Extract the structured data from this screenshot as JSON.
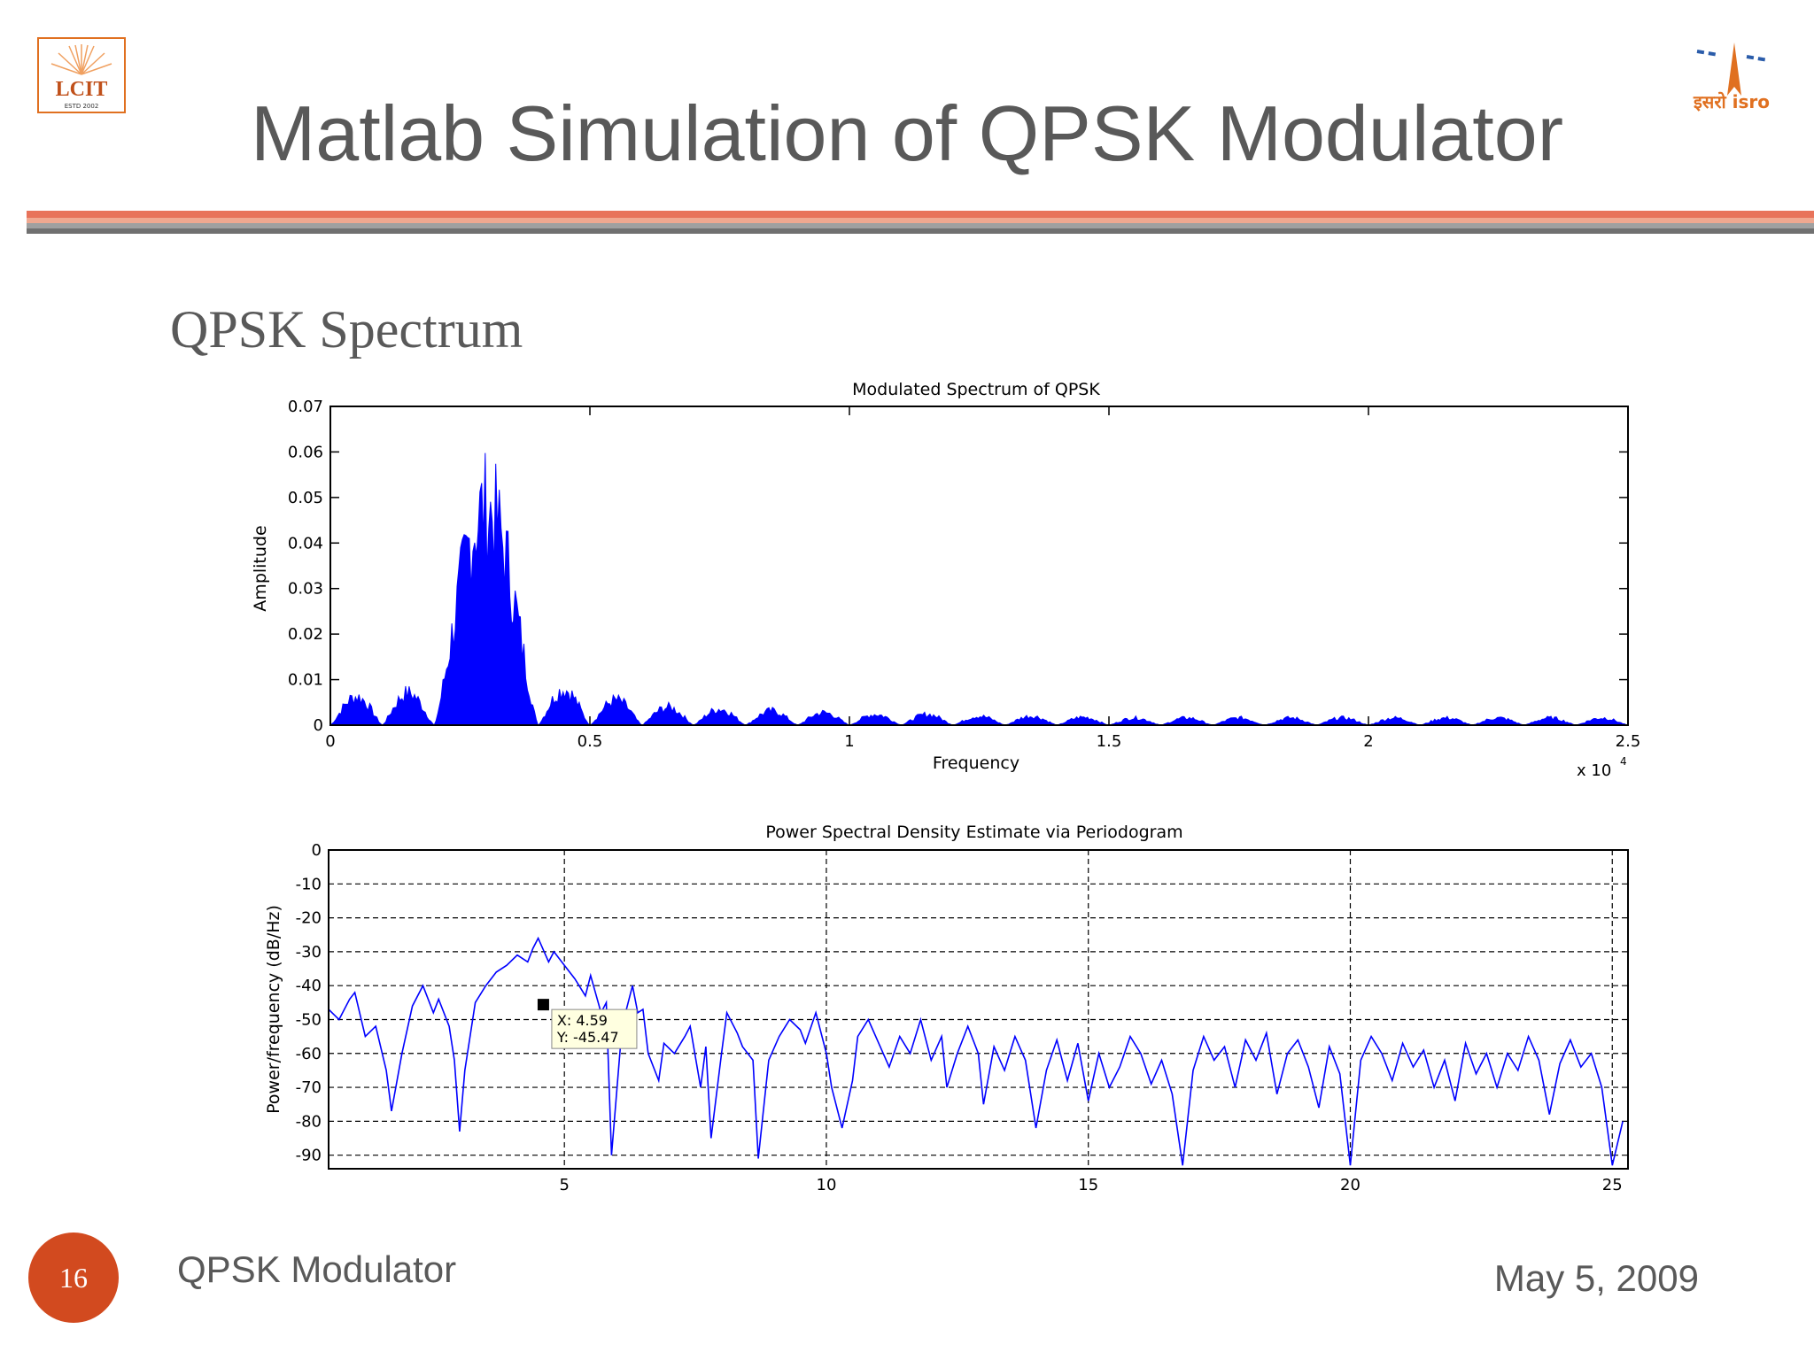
{
  "slide": {
    "title": "Matlab Simulation of QPSK Modulator",
    "section_heading": "QPSK Spectrum",
    "footer_title": "QPSK Modulator",
    "footer_date": "May 5, 2009",
    "slide_number": "16",
    "logo_left_text": "LCIT",
    "logo_left_subtext": "ESTD 2002",
    "logo_right_text": "इसरो isro"
  },
  "colors": {
    "title_text": "#595959",
    "divider_top": "#e8735a",
    "divider_bottom": "#808080",
    "slide_number_bg": "#d24a1f",
    "series": "#0000ff",
    "logo_accent": "#e07020"
  },
  "chart_data": [
    {
      "type": "line",
      "title": "Modulated Spectrum of QPSK",
      "xlabel": "Frequency",
      "ylabel": "Amplitude",
      "xlim": [
        0,
        25000
      ],
      "ylim": [
        0,
        0.07
      ],
      "xticks": [
        0,
        5000,
        10000,
        15000,
        20000,
        25000
      ],
      "xtick_labels": [
        "0",
        "0.5",
        "1",
        "1.5",
        "2",
        "2.5"
      ],
      "yticks": [
        0,
        0.01,
        0.02,
        0.03,
        0.04,
        0.05,
        0.06,
        0.07
      ],
      "ytick_labels": [
        "0",
        "0.01",
        "0.02",
        "0.03",
        "0.04",
        "0.05",
        "0.06",
        "0.07"
      ],
      "x_multiplier_label": "x 10",
      "x_multiplier_exp": "4",
      "grid": false,
      "series": [
        {
          "lobes": [
            {
              "x_start": 0,
              "x_end": 1000,
              "peak": 0.008
            },
            {
              "x_start": 1000,
              "x_end": 2000,
              "peak": 0.009
            },
            {
              "x_start": 2000,
              "x_end": 4000,
              "peak": 0.061
            },
            {
              "x_start": 4000,
              "x_end": 5000,
              "peak": 0.01
            },
            {
              "x_start": 5000,
              "x_end": 6000,
              "peak": 0.007
            },
            {
              "x_start": 6000,
              "x_end": 7000,
              "peak": 0.005
            },
            {
              "x_start": 7000,
              "x_end": 8000,
              "peak": 0.0045
            },
            {
              "x_start": 8000,
              "x_end": 9000,
              "peak": 0.004
            },
            {
              "x_start": 9000,
              "x_end": 10000,
              "peak": 0.0035
            },
            {
              "x_start": 10000,
              "x_end": 11000,
              "peak": 0.003
            },
            {
              "x_start": 11000,
              "x_end": 12000,
              "peak": 0.003
            },
            {
              "x_start": 12000,
              "x_end": 13000,
              "peak": 0.0025
            },
            {
              "x_start": 13000,
              "x_end": 14000,
              "peak": 0.0025
            },
            {
              "x_start": 14000,
              "x_end": 15000,
              "peak": 0.0022
            },
            {
              "x_start": 15000,
              "x_end": 16000,
              "peak": 0.002
            },
            {
              "x_start": 16000,
              "x_end": 17000,
              "peak": 0.002
            },
            {
              "x_start": 17000,
              "x_end": 18000,
              "peak": 0.002
            },
            {
              "x_start": 18000,
              "x_end": 19000,
              "peak": 0.002
            },
            {
              "x_start": 19000,
              "x_end": 20000,
              "peak": 0.002
            },
            {
              "x_start": 20000,
              "x_end": 21000,
              "peak": 0.002
            },
            {
              "x_start": 21000,
              "x_end": 22000,
              "peak": 0.002
            },
            {
              "x_start": 22000,
              "x_end": 23000,
              "peak": 0.002
            },
            {
              "x_start": 23000,
              "x_end": 24000,
              "peak": 0.002
            },
            {
              "x_start": 24000,
              "x_end": 25000,
              "peak": 0.002
            }
          ]
        }
      ]
    },
    {
      "type": "line",
      "title": "Power Spectral Density Estimate via Periodogram",
      "xlabel": "",
      "ylabel": "Power/frequency (dB/Hz)",
      "xlim": [
        0.5,
        25.3
      ],
      "ylim": [
        -94,
        0
      ],
      "xticks": [
        5,
        10,
        15,
        20,
        25
      ],
      "xtick_labels": [
        "5",
        "10",
        "15",
        "20",
        "25"
      ],
      "yticks": [
        0,
        -10,
        -20,
        -30,
        -40,
        -50,
        -60,
        -70,
        -80,
        -90
      ],
      "ytick_labels": [
        "0",
        "-10",
        "-20",
        "-30",
        "-40",
        "-50",
        "-60",
        "-70",
        "-80",
        "-90"
      ],
      "grid": true,
      "datatip": {
        "x": 4.59,
        "y": -45.47,
        "x_label": "X: 4.59",
        "y_label": "Y: -45.47"
      },
      "series": [
        {
          "points": [
            [
              0.5,
              -47
            ],
            [
              0.7,
              -50
            ],
            [
              0.9,
              -44
            ],
            [
              1.0,
              -42
            ],
            [
              1.2,
              -55
            ],
            [
              1.4,
              -52
            ],
            [
              1.6,
              -65
            ],
            [
              1.7,
              -77
            ],
            [
              1.9,
              -60
            ],
            [
              2.1,
              -46
            ],
            [
              2.3,
              -40
            ],
            [
              2.5,
              -48
            ],
            [
              2.6,
              -44
            ],
            [
              2.8,
              -52
            ],
            [
              2.9,
              -62
            ],
            [
              3.0,
              -83
            ],
            [
              3.1,
              -65
            ],
            [
              3.3,
              -45
            ],
            [
              3.5,
              -40
            ],
            [
              3.7,
              -36
            ],
            [
              3.9,
              -34
            ],
            [
              4.1,
              -31
            ],
            [
              4.3,
              -33
            ],
            [
              4.4,
              -29
            ],
            [
              4.5,
              -26
            ],
            [
              4.7,
              -33
            ],
            [
              4.8,
              -30
            ],
            [
              5.0,
              -34
            ],
            [
              5.2,
              -38
            ],
            [
              5.4,
              -43
            ],
            [
              5.5,
              -37
            ],
            [
              5.7,
              -48
            ],
            [
              5.8,
              -45
            ],
            [
              5.9,
              -90
            ],
            [
              6.1,
              -52
            ],
            [
              6.3,
              -40
            ],
            [
              6.4,
              -48
            ],
            [
              6.5,
              -47
            ],
            [
              6.6,
              -60
            ],
            [
              6.8,
              -68
            ],
            [
              6.9,
              -57
            ],
            [
              7.1,
              -60
            ],
            [
              7.3,
              -55
            ],
            [
              7.4,
              -52
            ],
            [
              7.6,
              -70
            ],
            [
              7.7,
              -58
            ],
            [
              7.8,
              -85
            ],
            [
              8.0,
              -60
            ],
            [
              8.1,
              -48
            ],
            [
              8.3,
              -54
            ],
            [
              8.4,
              -58
            ],
            [
              8.6,
              -62
            ],
            [
              8.7,
              -91
            ],
            [
              8.9,
              -62
            ],
            [
              9.1,
              -55
            ],
            [
              9.3,
              -50
            ],
            [
              9.5,
              -53
            ],
            [
              9.6,
              -57
            ],
            [
              9.8,
              -48
            ],
            [
              10.0,
              -60
            ],
            [
              10.1,
              -70
            ],
            [
              10.3,
              -82
            ],
            [
              10.5,
              -68
            ],
            [
              10.6,
              -55
            ],
            [
              10.8,
              -50
            ],
            [
              11.0,
              -57
            ],
            [
              11.2,
              -64
            ],
            [
              11.4,
              -55
            ],
            [
              11.6,
              -60
            ],
            [
              11.8,
              -50
            ],
            [
              12.0,
              -62
            ],
            [
              12.2,
              -55
            ],
            [
              12.3,
              -70
            ],
            [
              12.5,
              -60
            ],
            [
              12.7,
              -52
            ],
            [
              12.9,
              -60
            ],
            [
              13.0,
              -75
            ],
            [
              13.2,
              -58
            ],
            [
              13.4,
              -65
            ],
            [
              13.6,
              -55
            ],
            [
              13.8,
              -62
            ],
            [
              14.0,
              -82
            ],
            [
              14.2,
              -65
            ],
            [
              14.4,
              -56
            ],
            [
              14.6,
              -68
            ],
            [
              14.8,
              -57
            ],
            [
              15.0,
              -74
            ],
            [
              15.2,
              -60
            ],
            [
              15.4,
              -70
            ],
            [
              15.6,
              -64
            ],
            [
              15.8,
              -55
            ],
            [
              16.0,
              -60
            ],
            [
              16.2,
              -69
            ],
            [
              16.4,
              -62
            ],
            [
              16.6,
              -72
            ],
            [
              16.8,
              -93
            ],
            [
              17.0,
              -65
            ],
            [
              17.2,
              -55
            ],
            [
              17.4,
              -62
            ],
            [
              17.6,
              -58
            ],
            [
              17.8,
              -70
            ],
            [
              18.0,
              -56
            ],
            [
              18.2,
              -62
            ],
            [
              18.4,
              -54
            ],
            [
              18.6,
              -72
            ],
            [
              18.8,
              -60
            ],
            [
              19.0,
              -56
            ],
            [
              19.2,
              -64
            ],
            [
              19.4,
              -76
            ],
            [
              19.6,
              -58
            ],
            [
              19.8,
              -66
            ],
            [
              20.0,
              -93
            ],
            [
              20.2,
              -62
            ],
            [
              20.4,
              -55
            ],
            [
              20.6,
              -60
            ],
            [
              20.8,
              -68
            ],
            [
              21.0,
              -57
            ],
            [
              21.2,
              -64
            ],
            [
              21.4,
              -59
            ],
            [
              21.6,
              -70
            ],
            [
              21.8,
              -62
            ],
            [
              22.0,
              -74
            ],
            [
              22.2,
              -57
            ],
            [
              22.4,
              -66
            ],
            [
              22.6,
              -60
            ],
            [
              22.8,
              -70
            ],
            [
              23.0,
              -60
            ],
            [
              23.2,
              -65
            ],
            [
              23.4,
              -55
            ],
            [
              23.6,
              -62
            ],
            [
              23.8,
              -78
            ],
            [
              24.0,
              -63
            ],
            [
              24.2,
              -56
            ],
            [
              24.4,
              -64
            ],
            [
              24.6,
              -60
            ],
            [
              24.8,
              -70
            ],
            [
              25.0,
              -93
            ],
            [
              25.2,
              -80
            ]
          ]
        }
      ]
    }
  ]
}
